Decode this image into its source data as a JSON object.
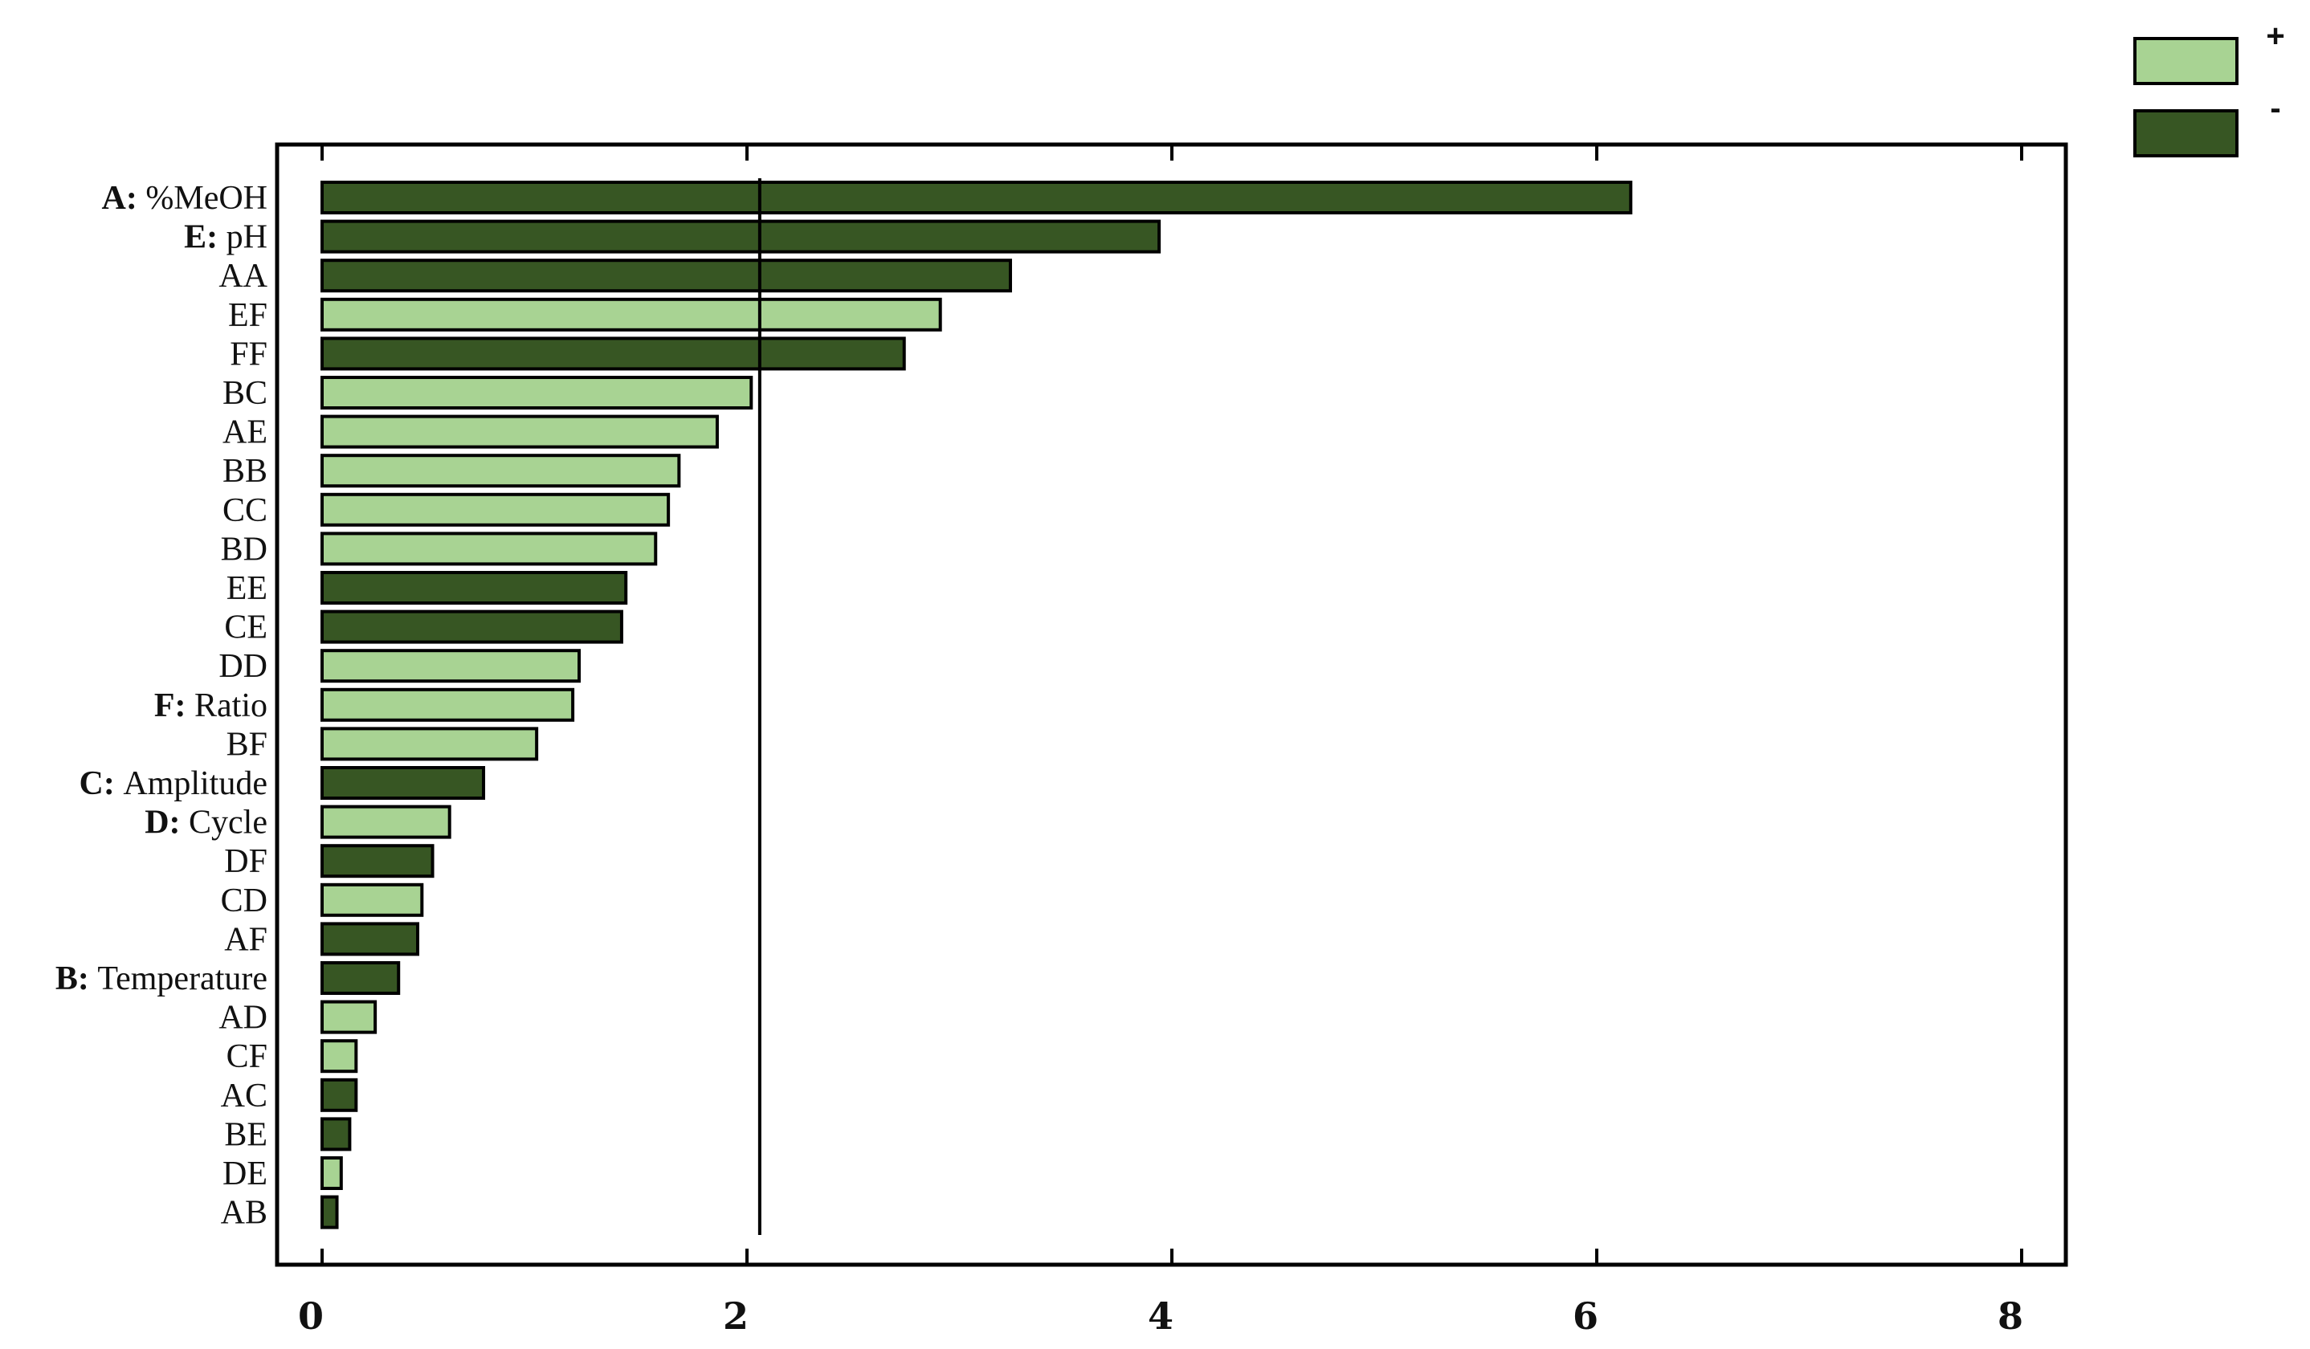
{
  "chart_data": {
    "type": "bar",
    "orientation": "horizontal",
    "title": "",
    "xlabel": "",
    "ylabel": "",
    "xlim": [
      0,
      8
    ],
    "x_ticks": [
      "0",
      "2",
      "4",
      "6",
      "8"
    ],
    "reference_line": 2.06,
    "categories": [
      {
        "prefix": "A:",
        "name": "%MeOH"
      },
      {
        "prefix": "E:",
        "name": "pH"
      },
      {
        "prefix": "",
        "name": "AA"
      },
      {
        "prefix": "",
        "name": "EF"
      },
      {
        "prefix": "",
        "name": "FF"
      },
      {
        "prefix": "",
        "name": "BC"
      },
      {
        "prefix": "",
        "name": "AE"
      },
      {
        "prefix": "",
        "name": "BB"
      },
      {
        "prefix": "",
        "name": "CC"
      },
      {
        "prefix": "",
        "name": "BD"
      },
      {
        "prefix": "",
        "name": "EE"
      },
      {
        "prefix": "",
        "name": "CE"
      },
      {
        "prefix": "",
        "name": "DD"
      },
      {
        "prefix": "F:",
        "name": "Ratio"
      },
      {
        "prefix": "",
        "name": "BF"
      },
      {
        "prefix": "C:",
        "name": "Amplitude"
      },
      {
        "prefix": "D:",
        "name": "Cycle"
      },
      {
        "prefix": "",
        "name": "DF"
      },
      {
        "prefix": "",
        "name": "CD"
      },
      {
        "prefix": "",
        "name": "AF"
      },
      {
        "prefix": "B:",
        "name": "Temperature"
      },
      {
        "prefix": "",
        "name": "AD"
      },
      {
        "prefix": "",
        "name": "CF"
      },
      {
        "prefix": "",
        "name": "AC"
      },
      {
        "prefix": "",
        "name": "BE"
      },
      {
        "prefix": "",
        "name": "DE"
      },
      {
        "prefix": "",
        "name": "AB"
      }
    ],
    "values": [
      6.16,
      3.94,
      3.24,
      2.91,
      2.74,
      2.02,
      1.86,
      1.68,
      1.63,
      1.57,
      1.43,
      1.41,
      1.21,
      1.18,
      1.01,
      0.76,
      0.6,
      0.52,
      0.47,
      0.45,
      0.36,
      0.25,
      0.16,
      0.16,
      0.13,
      0.09,
      0.07
    ],
    "signs": [
      "-",
      "-",
      "-",
      "+",
      "-",
      "+",
      "+",
      "+",
      "+",
      "+",
      "-",
      "-",
      "+",
      "+",
      "+",
      "-",
      "+",
      "-",
      "+",
      "-",
      "-",
      "+",
      "+",
      "-",
      "-",
      "+",
      "-"
    ],
    "legend": [
      {
        "label": "+",
        "color": "#a8d393"
      },
      {
        "label": "-",
        "color": "#375623"
      }
    ],
    "legend_position": "top-right",
    "grid": false
  }
}
